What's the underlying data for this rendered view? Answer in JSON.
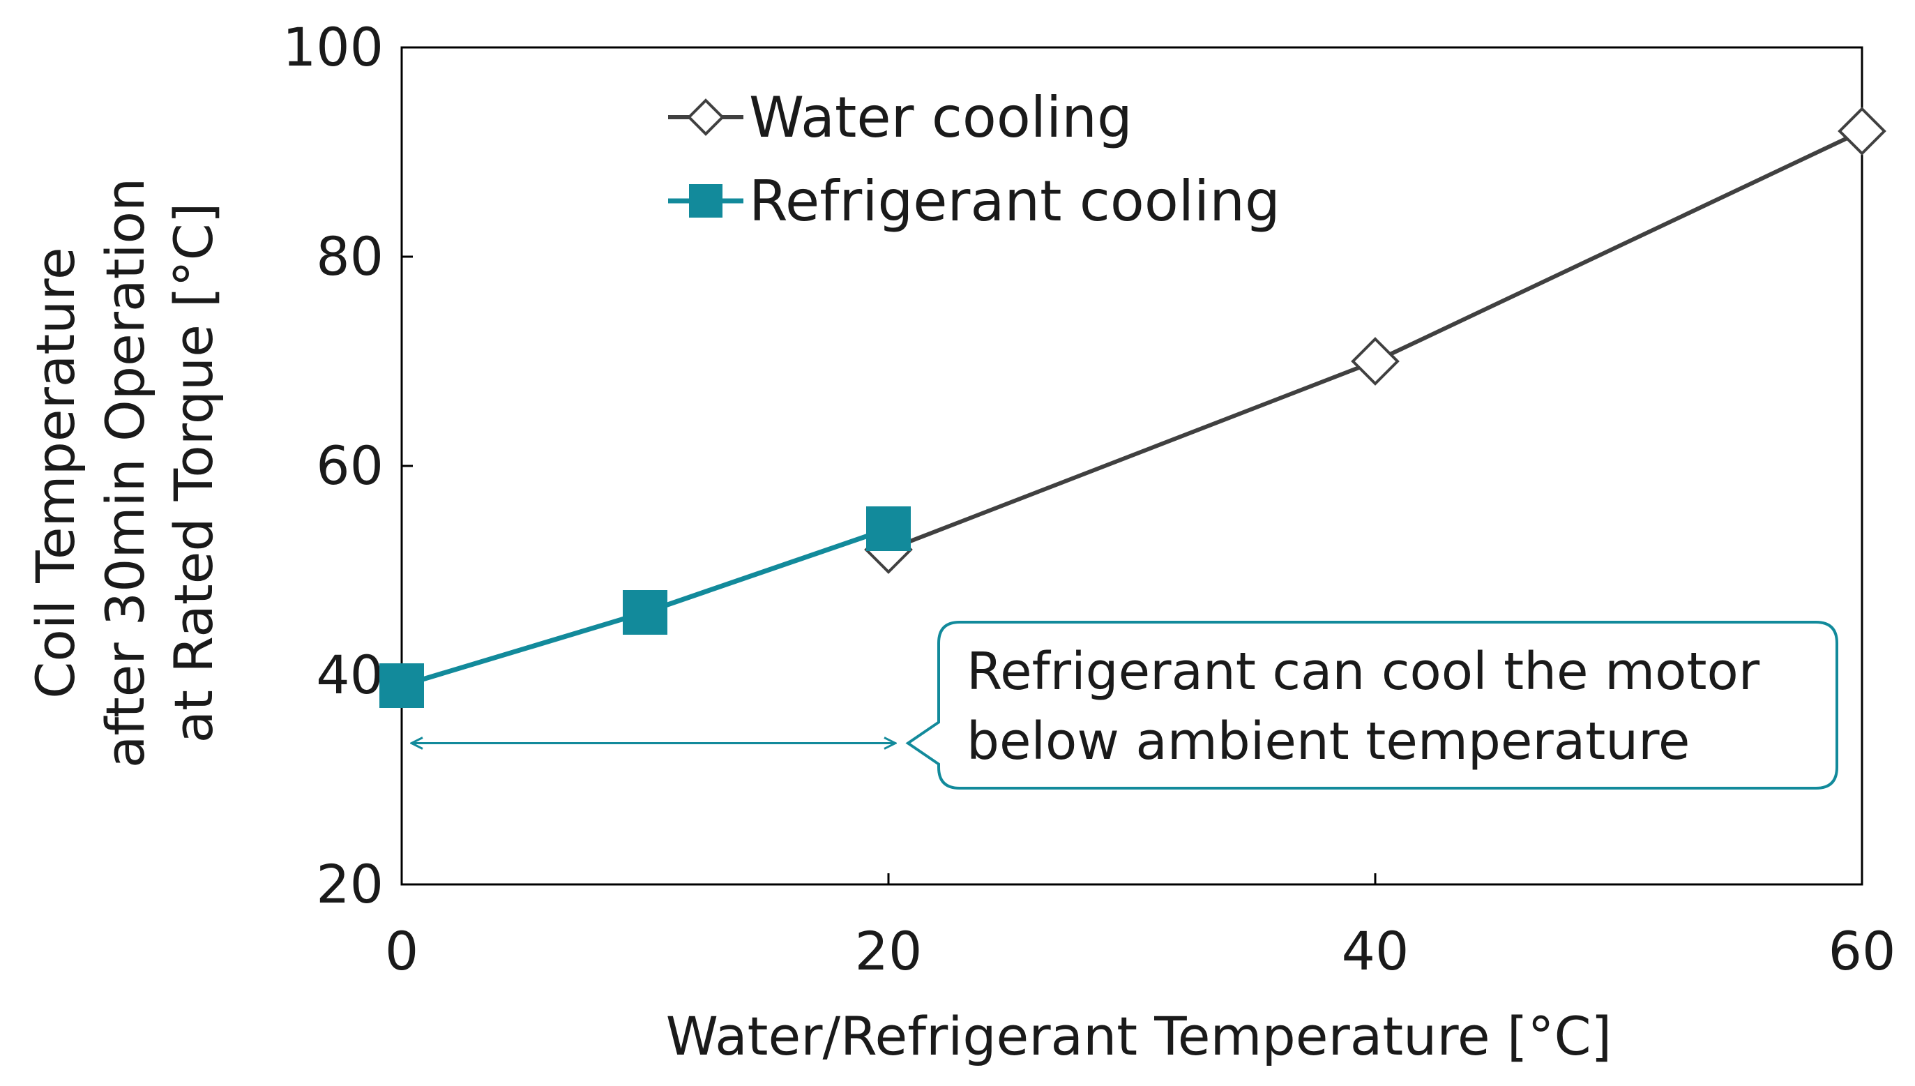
{
  "chart_data": {
    "type": "line",
    "title": "",
    "xlabel": "Water/Refrigerant Temperature [°C]",
    "ylabel_lines": [
      "Coil Temperature",
      "after 30min Operation",
      "at Rated Torque [°C]"
    ],
    "xlim": [
      0,
      60
    ],
    "ylim": [
      20,
      100
    ],
    "x_ticks": [
      0,
      20,
      40,
      60
    ],
    "y_ticks": [
      20,
      40,
      60,
      80,
      100
    ],
    "legend_position": "top-left",
    "series": [
      {
        "name": "Water cooling",
        "marker": "open-diamond",
        "color": "#404040",
        "x": [
          20,
          40,
          60
        ],
        "y": [
          52,
          70,
          92
        ]
      },
      {
        "name": "Refrigerant cooling",
        "marker": "filled-square",
        "color": "#128A9B",
        "x": [
          0,
          10,
          20
        ],
        "y": [
          39,
          46,
          54
        ]
      }
    ],
    "annotation": {
      "lines": [
        "Refrigerant can cool the motor",
        "below ambient temperature"
      ],
      "arrow_from_x": 0,
      "arrow_to_x": 20,
      "arrow_y": 33.5,
      "color": "#128A9B"
    }
  }
}
